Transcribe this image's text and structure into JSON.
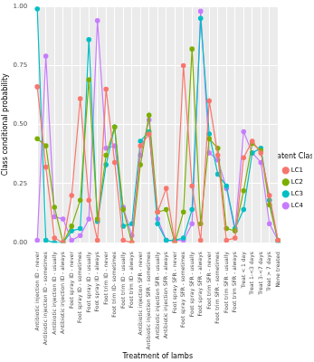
{
  "chart_data": {
    "type": "line",
    "x_label": "Treatment of lambs",
    "y_label": "Class conditional probability",
    "legend": "right",
    "legend_title": "Latent Class",
    "grid": true,
    "marker": "circle",
    "ylim": [
      0,
      1
    ],
    "yticks": [
      {
        "value": 0,
        "label": "0.00"
      },
      {
        "value": 0.25,
        "label": "0.25"
      },
      {
        "value": 0.5,
        "label": "0.50"
      },
      {
        "value": 0.75,
        "label": "0.75"
      },
      {
        "value": 1,
        "label": "1.00"
      }
    ],
    "categories": [
      "Antibiotic injection ID - never",
      "Antibiotic injection ID - sometimes",
      "Antibiotic injection ID - usually",
      "Antibiotic injection ID - always",
      "Foot spray ID - never",
      "Foot spray ID - sometimes",
      "Foot spray ID - usually",
      "Foot spray ID - always",
      "Foot trim ID - never",
      "Foot trim ID- sometimes",
      "Foot trim ID - usually",
      "Foot trim ID - always",
      "Antibiotic injection SFR - never",
      "Antibiotic injection SFR - sometimes",
      "Antibiotic injection SFR - usually",
      "Antibiotic injection SFR - always",
      "Foot spray SFR - never",
      "Foot spray SFR - sometimes",
      "Foot spray SFR - usually",
      "Foot spray SFR - always",
      "Foot trim SFR - never",
      "Foot trim SFR - sometimes",
      "Foot trim SFR - usually",
      "Foot trim SFR - always",
      "Treat < 1 day",
      "Treat 1-<3 days",
      "Treat 3-<7 days",
      "Treat > 7 days",
      "None treated"
    ],
    "series": [
      {
        "name": "LC1",
        "color": "#F8766D",
        "values": [
          0.66,
          0.32,
          0.02,
          0.0,
          0.2,
          0.61,
          0.18,
          0.01,
          0.65,
          0.34,
          0.01,
          0.0,
          0.41,
          0.46,
          0.13,
          0.23,
          0.0,
          0.75,
          0.24,
          0.01,
          0.6,
          0.37,
          0.01,
          0.02,
          0.36,
          0.43,
          0.38,
          0.2,
          0.01
        ]
      },
      {
        "name": "LC2",
        "color": "#7CAE00",
        "values": [
          0.44,
          0.41,
          0.15,
          0.0,
          0.07,
          0.18,
          0.69,
          0.1,
          0.37,
          0.49,
          0.14,
          0.0,
          0.33,
          0.54,
          0.13,
          0.14,
          0.0,
          0.13,
          0.82,
          0.08,
          0.44,
          0.4,
          0.06,
          0.05,
          0.22,
          0.42,
          0.39,
          0.16,
          0.01
        ]
      },
      {
        "name": "LC3",
        "color": "#00BFC4",
        "values": [
          0.99,
          0.01,
          0.0,
          0.0,
          0.05,
          0.06,
          0.86,
          0.09,
          0.33,
          0.49,
          0.07,
          0.08,
          0.43,
          0.47,
          0.08,
          0.01,
          0.01,
          0.02,
          0.14,
          0.95,
          0.46,
          0.29,
          0.24,
          0.06,
          0.14,
          0.38,
          0.4,
          0.18,
          0.0
        ]
      },
      {
        "name": "LC4",
        "color": "#C77CFF",
        "values": [
          0.01,
          0.79,
          0.11,
          0.1,
          0.01,
          0.03,
          0.1,
          0.94,
          0.4,
          0.41,
          0.15,
          0.03,
          0.37,
          0.52,
          0.1,
          0.01,
          0.01,
          0.01,
          0.08,
          0.98,
          0.38,
          0.35,
          0.23,
          0.05,
          0.47,
          0.38,
          0.34,
          0.08,
          0.01
        ]
      }
    ]
  }
}
